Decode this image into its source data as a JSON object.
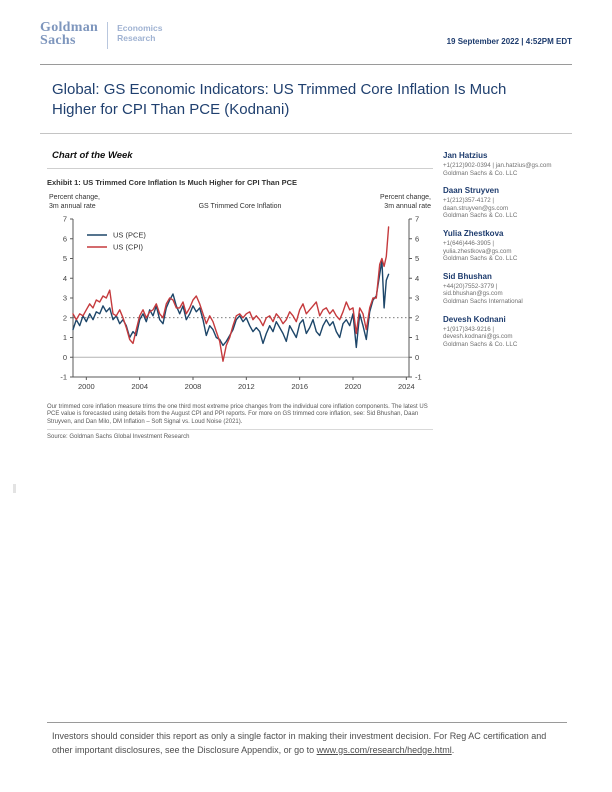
{
  "header": {
    "logo_line1": "Goldman",
    "logo_line2": "Sachs",
    "division_line1": "Economics",
    "division_line2": "Research",
    "datetime": "19 September 2022 | 4:52PM EDT"
  },
  "title": "Global: GS Economic Indicators: US Trimmed Core Inflation Is Much Higher for CPI Than PCE (Kodnani)",
  "section": {
    "heading": "Chart of the Week",
    "exhibit_title": "Exhibit 1: US Trimmed Core Inflation Is Much Higher for CPI Than PCE",
    "footnote": "Our trimmed core inflation measure trims the one third most extreme price changes from the individual core inflation components. The latest US PCE value is forecasted using details from the August CPI and PPI reports. For more on GS trimmed core inflation, see: Sid Bhushan, Daan Struyven, and Dan Milo, DM Inflation – Soft Signal vs. Loud Noise (2021).",
    "source": "Source: Goldman Sachs Global Investment Research"
  },
  "analysts": [
    {
      "name": "Jan Hatzius",
      "line1": "+1(212)902-0394 | jan.hatzius@gs.com",
      "line2": "Goldman Sachs & Co. LLC",
      "line3": ""
    },
    {
      "name": "Daan Struyven",
      "line1": "+1(212)357-4172 |",
      "line2": "daan.struyven@gs.com",
      "line3": "Goldman Sachs & Co. LLC"
    },
    {
      "name": "Yulia Zhestkova",
      "line1": "+1(646)446-3905 |",
      "line2": "yulia.zhestkova@gs.com",
      "line3": "Goldman Sachs & Co. LLC"
    },
    {
      "name": "Sid Bhushan",
      "line1": "+44(20)7552-3779 |",
      "line2": "sid.bhushan@gs.com",
      "line3": "Goldman Sachs International"
    },
    {
      "name": "Devesh Kodnani",
      "line1": "+1(917)343-9216 |",
      "line2": "devesh.kodnani@gs.com",
      "line3": "Goldman Sachs & Co. LLC"
    }
  ],
  "footer": {
    "text": "Investors should consider this report as only a single factor in making their investment decision. For Reg AC certification and other important disclosures, see the Disclosure Appendix, or go to ",
    "link": "www.gs.com/research/hedge.html",
    "suffix": "."
  },
  "chart_data": {
    "type": "line",
    "title": "GS Trimmed Core Inflation",
    "labels": {
      "left_l1": "Percent change,",
      "left_l2": "3m annual rate",
      "right_l1": "Percent change,",
      "right_l2": "3m annual rate"
    },
    "xlim": [
      1999,
      2024.2
    ],
    "ylim": [
      -1,
      7
    ],
    "x_ticks": [
      2000,
      2004,
      2008,
      2012,
      2016,
      2020,
      2024
    ],
    "y_ticks": [
      -1,
      0,
      1,
      2,
      3,
      4,
      5,
      6,
      7
    ],
    "reference_lines": [
      {
        "y": 2,
        "style": "dotted",
        "color": "#4d4d4d"
      },
      {
        "y": 0,
        "style": "solid",
        "color": "#b3b3b3"
      }
    ],
    "legend_position": "top-left",
    "axis_color": "#595959",
    "series": [
      {
        "name": "US (PCE)",
        "color": "#1d4669",
        "points": [
          [
            1999.0,
            1.4
          ],
          [
            1999.25,
            1.9
          ],
          [
            1999.5,
            1.6
          ],
          [
            1999.75,
            2.1
          ],
          [
            2000.0,
            1.8
          ],
          [
            2000.25,
            2.2
          ],
          [
            2000.5,
            1.9
          ],
          [
            2000.75,
            2.3
          ],
          [
            2001.0,
            2.2
          ],
          [
            2001.25,
            2.6
          ],
          [
            2001.5,
            2.3
          ],
          [
            2001.75,
            2.5
          ],
          [
            2002.0,
            1.9
          ],
          [
            2002.25,
            2.1
          ],
          [
            2002.5,
            1.7
          ],
          [
            2002.75,
            1.9
          ],
          [
            2003.0,
            1.6
          ],
          [
            2003.25,
            1.0
          ],
          [
            2003.5,
            1.3
          ],
          [
            2003.75,
            1.1
          ],
          [
            2004.0,
            1.9
          ],
          [
            2004.25,
            2.2
          ],
          [
            2004.5,
            1.8
          ],
          [
            2004.75,
            2.4
          ],
          [
            2005.0,
            2.1
          ],
          [
            2005.25,
            2.6
          ],
          [
            2005.5,
            1.9
          ],
          [
            2005.75,
            1.7
          ],
          [
            2006.0,
            2.5
          ],
          [
            2006.25,
            2.9
          ],
          [
            2006.5,
            3.2
          ],
          [
            2006.75,
            2.6
          ],
          [
            2007.0,
            2.2
          ],
          [
            2007.25,
            2.6
          ],
          [
            2007.5,
            1.9
          ],
          [
            2007.75,
            2.2
          ],
          [
            2008.0,
            2.6
          ],
          [
            2008.25,
            2.3
          ],
          [
            2008.5,
            2.5
          ],
          [
            2008.75,
            1.9
          ],
          [
            2009.0,
            1.1
          ],
          [
            2009.25,
            1.6
          ],
          [
            2009.5,
            1.4
          ],
          [
            2009.75,
            1.0
          ],
          [
            2010.0,
            0.9
          ],
          [
            2010.25,
            0.6
          ],
          [
            2010.5,
            0.8
          ],
          [
            2010.75,
            1.1
          ],
          [
            2011.0,
            1.4
          ],
          [
            2011.25,
            1.9
          ],
          [
            2011.5,
            2.1
          ],
          [
            2011.75,
            1.8
          ],
          [
            2012.0,
            2.0
          ],
          [
            2012.25,
            1.6
          ],
          [
            2012.5,
            1.3
          ],
          [
            2012.75,
            1.5
          ],
          [
            2013.0,
            1.3
          ],
          [
            2013.25,
            0.7
          ],
          [
            2013.5,
            1.2
          ],
          [
            2013.75,
            1.6
          ],
          [
            2014.0,
            1.3
          ],
          [
            2014.25,
            1.8
          ],
          [
            2014.5,
            1.5
          ],
          [
            2014.75,
            1.2
          ],
          [
            2015.0,
            0.8
          ],
          [
            2015.25,
            1.6
          ],
          [
            2015.5,
            1.3
          ],
          [
            2015.75,
            1.0
          ],
          [
            2016.0,
            1.7
          ],
          [
            2016.25,
            1.9
          ],
          [
            2016.5,
            1.2
          ],
          [
            2016.75,
            1.5
          ],
          [
            2017.0,
            1.9
          ],
          [
            2017.25,
            1.3
          ],
          [
            2017.5,
            1.1
          ],
          [
            2017.75,
            1.6
          ],
          [
            2018.0,
            1.9
          ],
          [
            2018.25,
            1.6
          ],
          [
            2018.5,
            1.8
          ],
          [
            2018.75,
            1.3
          ],
          [
            2019.0,
            1.0
          ],
          [
            2019.25,
            1.7
          ],
          [
            2019.5,
            1.9
          ],
          [
            2019.75,
            1.6
          ],
          [
            2020.0,
            2.2
          ],
          [
            2020.25,
            0.5
          ],
          [
            2020.5,
            2.2
          ],
          [
            2020.75,
            1.6
          ],
          [
            2021.0,
            0.9
          ],
          [
            2021.25,
            2.3
          ],
          [
            2021.5,
            2.9
          ],
          [
            2021.75,
            3.1
          ],
          [
            2022.0,
            4.2
          ],
          [
            2022.17,
            4.9
          ],
          [
            2022.33,
            2.5
          ],
          [
            2022.5,
            3.9
          ],
          [
            2022.67,
            4.2
          ]
        ]
      },
      {
        "name": "US (CPI)",
        "color": "#c53a3d",
        "points": [
          [
            1999.0,
            2.2
          ],
          [
            1999.25,
            1.9
          ],
          [
            1999.5,
            2.2
          ],
          [
            1999.75,
            2.1
          ],
          [
            2000.0,
            2.4
          ],
          [
            2000.25,
            2.7
          ],
          [
            2000.5,
            2.5
          ],
          [
            2000.75,
            2.9
          ],
          [
            2001.0,
            2.8
          ],
          [
            2001.25,
            3.1
          ],
          [
            2001.5,
            3.0
          ],
          [
            2001.75,
            3.4
          ],
          [
            2002.0,
            2.2
          ],
          [
            2002.25,
            2.1
          ],
          [
            2002.5,
            2.4
          ],
          [
            2002.75,
            2.0
          ],
          [
            2003.0,
            1.5
          ],
          [
            2003.25,
            0.9
          ],
          [
            2003.5,
            0.7
          ],
          [
            2003.75,
            1.4
          ],
          [
            2004.0,
            2.1
          ],
          [
            2004.25,
            2.4
          ],
          [
            2004.5,
            2.0
          ],
          [
            2004.75,
            2.3
          ],
          [
            2005.0,
            2.4
          ],
          [
            2005.25,
            2.7
          ],
          [
            2005.5,
            2.2
          ],
          [
            2005.75,
            2.0
          ],
          [
            2006.0,
            2.7
          ],
          [
            2006.25,
            3.0
          ],
          [
            2006.5,
            2.9
          ],
          [
            2006.75,
            2.5
          ],
          [
            2007.0,
            2.5
          ],
          [
            2007.25,
            2.8
          ],
          [
            2007.5,
            2.2
          ],
          [
            2007.75,
            2.5
          ],
          [
            2008.0,
            2.9
          ],
          [
            2008.25,
            3.1
          ],
          [
            2008.5,
            2.7
          ],
          [
            2008.75,
            2.2
          ],
          [
            2009.0,
            1.7
          ],
          [
            2009.25,
            2.1
          ],
          [
            2009.5,
            1.8
          ],
          [
            2009.75,
            1.3
          ],
          [
            2010.0,
            0.8
          ],
          [
            2010.25,
            -0.2
          ],
          [
            2010.5,
            0.6
          ],
          [
            2010.75,
            1.0
          ],
          [
            2011.0,
            1.6
          ],
          [
            2011.25,
            2.1
          ],
          [
            2011.5,
            2.2
          ],
          [
            2011.75,
            2.0
          ],
          [
            2012.0,
            2.2
          ],
          [
            2012.25,
            2.3
          ],
          [
            2012.5,
            1.9
          ],
          [
            2012.75,
            2.1
          ],
          [
            2013.0,
            1.9
          ],
          [
            2013.25,
            1.6
          ],
          [
            2013.5,
            2.0
          ],
          [
            2013.75,
            2.1
          ],
          [
            2014.0,
            1.8
          ],
          [
            2014.25,
            2.2
          ],
          [
            2014.5,
            2.0
          ],
          [
            2014.75,
            1.7
          ],
          [
            2015.0,
            1.9
          ],
          [
            2015.25,
            2.3
          ],
          [
            2015.5,
            2.1
          ],
          [
            2015.75,
            1.8
          ],
          [
            2016.0,
            2.4
          ],
          [
            2016.25,
            2.7
          ],
          [
            2016.5,
            2.2
          ],
          [
            2016.75,
            2.4
          ],
          [
            2017.0,
            2.6
          ],
          [
            2017.25,
            2.8
          ],
          [
            2017.5,
            2.1
          ],
          [
            2017.75,
            2.4
          ],
          [
            2018.0,
            2.5
          ],
          [
            2018.25,
            2.2
          ],
          [
            2018.5,
            2.4
          ],
          [
            2018.75,
            2.1
          ],
          [
            2019.0,
            1.9
          ],
          [
            2019.25,
            2.3
          ],
          [
            2019.5,
            2.8
          ],
          [
            2019.75,
            2.4
          ],
          [
            2020.0,
            2.5
          ],
          [
            2020.25,
            1.2
          ],
          [
            2020.5,
            2.5
          ],
          [
            2020.75,
            2.2
          ],
          [
            2021.0,
            1.4
          ],
          [
            2021.25,
            2.5
          ],
          [
            2021.5,
            3.0
          ],
          [
            2021.75,
            3.0
          ],
          [
            2022.0,
            4.7
          ],
          [
            2022.17,
            5.0
          ],
          [
            2022.33,
            4.6
          ],
          [
            2022.5,
            5.1
          ],
          [
            2022.67,
            6.6
          ]
        ]
      }
    ]
  }
}
